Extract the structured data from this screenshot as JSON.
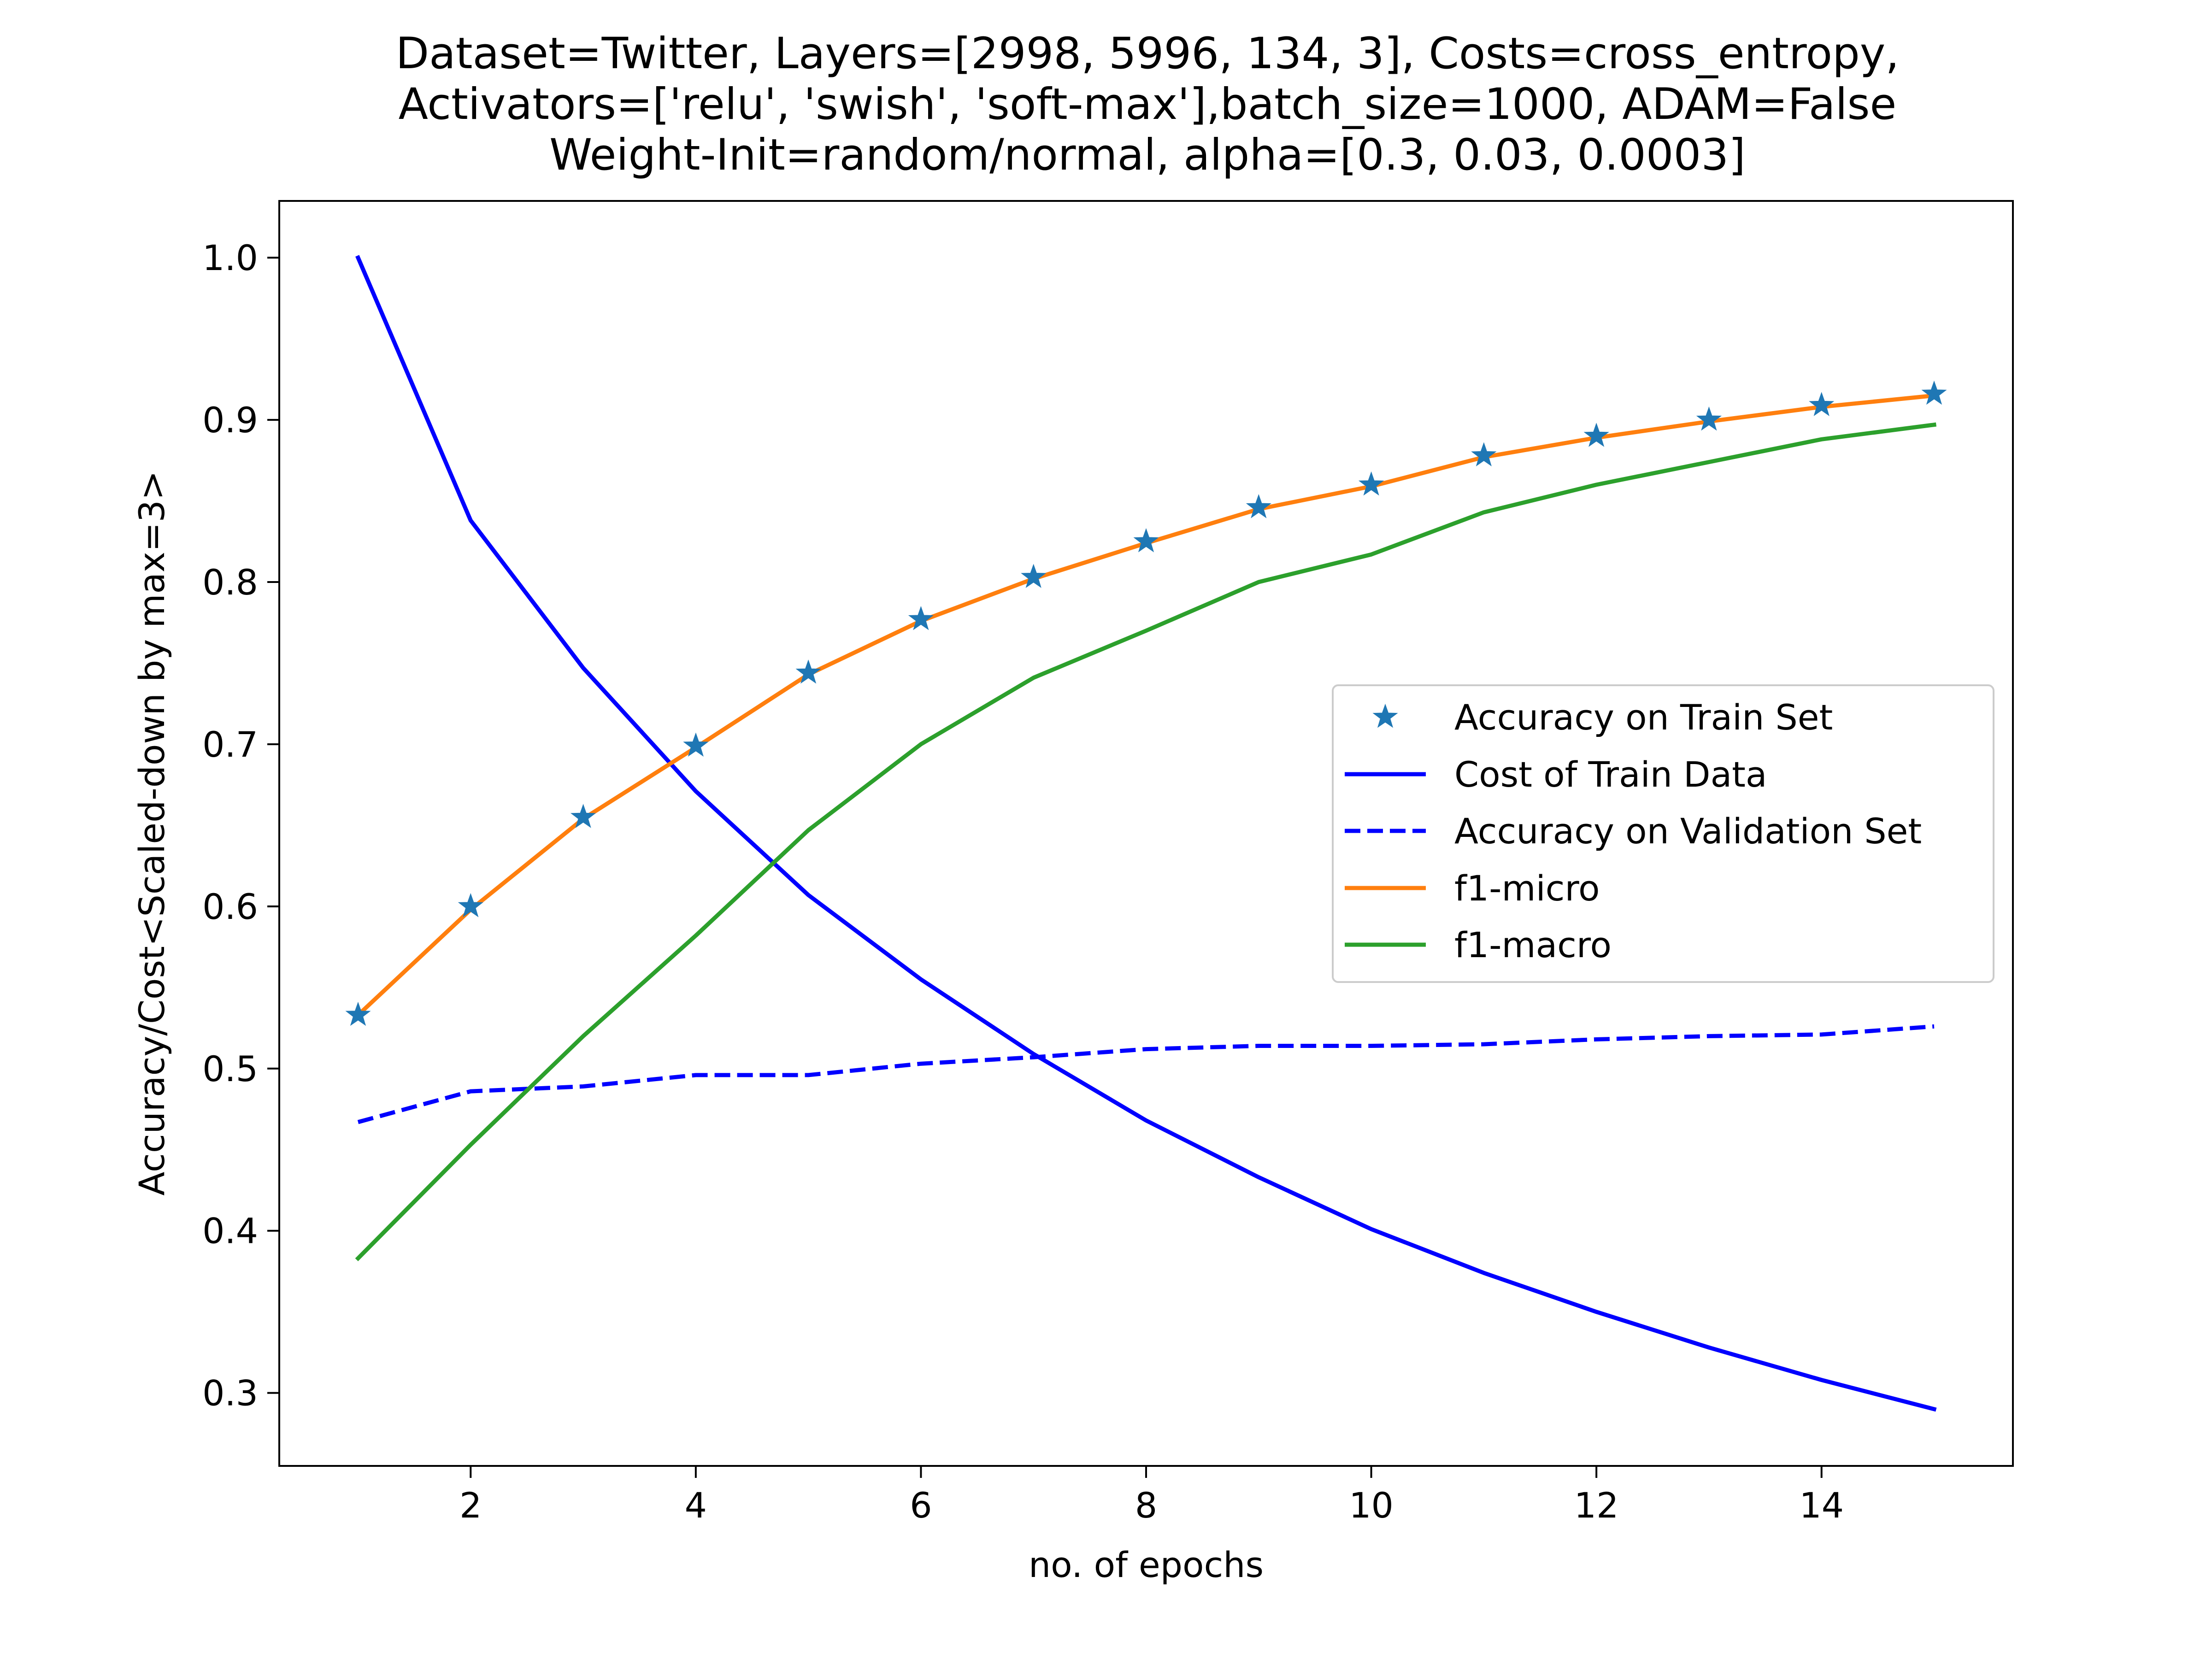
{
  "chart_data": {
    "type": "line",
    "title_lines": [
      "Dataset=Twitter, Layers=[2998, 5996, 134, 3], Costs=cross_entropy,",
      "Activators=['relu', 'swish', 'soft-max'],batch_size=1000, ADAM=False",
      "Weight-Init=random/normal, alpha=[0.3, 0.03, 0.0003]"
    ],
    "xlabel": "no. of epochs",
    "ylabel": "Accuracy/Cost<Scaled-down by max=3>",
    "xlim": [
      0.3,
      15.7
    ],
    "ylim": [
      0.255,
      1.035
    ],
    "xticks": [
      2,
      4,
      6,
      8,
      10,
      12,
      14
    ],
    "yticks": [
      0.3,
      0.4,
      0.5,
      0.6,
      0.7,
      0.8,
      0.9,
      1.0
    ],
    "ytick_labels": [
      "0.3",
      "0.4",
      "0.5",
      "0.6",
      "0.7",
      "0.8",
      "0.9",
      "1.0"
    ],
    "grid": false,
    "legend_position": "center-right",
    "x": [
      1,
      2,
      3,
      4,
      5,
      6,
      7,
      8,
      9,
      10,
      11,
      12,
      13,
      14,
      15
    ],
    "series": [
      {
        "name": "Accuracy on Train Set",
        "style": "star-markers",
        "color": "#1f77b4",
        "values": [
          0.533,
          0.6,
          0.655,
          0.699,
          0.744,
          0.777,
          0.803,
          0.825,
          0.846,
          0.86,
          0.878,
          0.89,
          0.9,
          0.909,
          0.916
        ]
      },
      {
        "name": "Cost of Train Data",
        "style": "solid",
        "color": "#0000ff",
        "values": [
          1.0,
          0.838,
          0.747,
          0.671,
          0.607,
          0.555,
          0.509,
          0.468,
          0.433,
          0.401,
          0.374,
          0.35,
          0.328,
          0.308,
          0.29
        ]
      },
      {
        "name": "Accuracy on Validation Set",
        "style": "dashed",
        "color": "#0000ff",
        "values": [
          0.467,
          0.486,
          0.489,
          0.496,
          0.496,
          0.503,
          0.507,
          0.512,
          0.514,
          0.514,
          0.515,
          0.518,
          0.52,
          0.521,
          0.526
        ]
      },
      {
        "name": "f1-micro",
        "style": "solid",
        "color": "#ff7f0e",
        "values": [
          0.533,
          0.598,
          0.654,
          0.698,
          0.743,
          0.776,
          0.802,
          0.824,
          0.845,
          0.859,
          0.877,
          0.889,
          0.899,
          0.908,
          0.915
        ]
      },
      {
        "name": "f1-macro",
        "style": "solid",
        "color": "#2ca02c",
        "values": [
          0.383,
          0.453,
          0.52,
          0.582,
          0.647,
          0.7,
          0.741,
          0.77,
          0.8,
          0.817,
          0.843,
          0.86,
          0.874,
          0.888,
          0.897
        ]
      }
    ]
  }
}
